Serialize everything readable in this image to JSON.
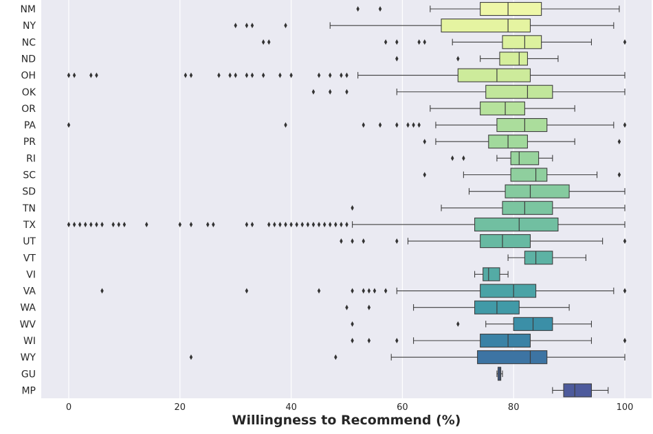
{
  "chart_data": {
    "type": "box",
    "orientation": "horizontal",
    "xlabel": "Willingness to Recommend (%)",
    "ylabel": "",
    "xlim": [
      -5,
      105
    ],
    "xticks": [
      0,
      20,
      40,
      60,
      80,
      100
    ],
    "grid": "vertical",
    "background": "#eaeaf2",
    "categories": [
      "NM",
      "NY",
      "NC",
      "ND",
      "OH",
      "OK",
      "OR",
      "PA",
      "PR",
      "RI",
      "SC",
      "SD",
      "TN",
      "TX",
      "UT",
      "VT",
      "VI",
      "VA",
      "WA",
      "WV",
      "WI",
      "WY",
      "GU",
      "MP"
    ],
    "boxes": [
      {
        "label": "NM",
        "whisker_low": 65,
        "q1": 74,
        "median": 79,
        "q3": 85,
        "whisker_high": 99,
        "fliers": [
          52,
          56
        ],
        "color": "#eef7a8"
      },
      {
        "label": "NY",
        "whisker_low": 47,
        "q1": 67,
        "median": 79,
        "q3": 83,
        "whisker_high": 98,
        "fliers": [
          30,
          32,
          33,
          39
        ],
        "color": "#e5f4a1"
      },
      {
        "label": "NC",
        "whisker_low": 69,
        "q1": 78,
        "median": 82,
        "q3": 85,
        "whisker_high": 94,
        "fliers": [
          35,
          36,
          57,
          59,
          63,
          64,
          100
        ],
        "color": "#dcf19e"
      },
      {
        "label": "ND",
        "whisker_low": 74,
        "q1": 77.5,
        "median": 81,
        "q3": 82.5,
        "whisker_high": 88,
        "fliers": [
          59,
          70
        ],
        "color": "#d5ee9c"
      },
      {
        "label": "OH",
        "whisker_low": 52,
        "q1": 70,
        "median": 77,
        "q3": 83,
        "whisker_high": 100,
        "fliers": [
          0,
          1,
          4,
          5,
          21,
          22,
          27,
          29,
          30,
          32,
          33,
          35,
          38,
          40,
          45,
          47,
          49,
          50
        ],
        "color": "#cdeb9b"
      },
      {
        "label": "OK",
        "whisker_low": 59,
        "q1": 75,
        "median": 82.5,
        "q3": 87,
        "whisker_high": 100,
        "fliers": [
          44,
          47,
          50
        ],
        "color": "#c1e69b"
      },
      {
        "label": "OR",
        "whisker_low": 65,
        "q1": 74,
        "median": 78.5,
        "q3": 82,
        "whisker_high": 91,
        "fliers": [],
        "color": "#b6e29c"
      },
      {
        "label": "PA",
        "whisker_low": 66,
        "q1": 77,
        "median": 82,
        "q3": 86,
        "whisker_high": 98,
        "fliers": [
          0,
          39,
          53,
          56,
          59,
          61,
          62,
          63,
          100
        ],
        "color": "#abdd9c"
      },
      {
        "label": "PR",
        "whisker_low": 66,
        "q1": 75.5,
        "median": 79,
        "q3": 82.5,
        "whisker_high": 91,
        "fliers": [
          64,
          99
        ],
        "color": "#a1d99c"
      },
      {
        "label": "RI",
        "whisker_low": 77,
        "q1": 79.5,
        "median": 81,
        "q3": 84.5,
        "whisker_high": 87,
        "fliers": [
          69,
          71
        ],
        "color": "#98d49d"
      },
      {
        "label": "SC",
        "whisker_low": 71,
        "q1": 79.5,
        "median": 84,
        "q3": 86,
        "whisker_high": 95,
        "fliers": [
          64,
          99
        ],
        "color": "#8fcf9e"
      },
      {
        "label": "SD",
        "whisker_low": 72,
        "q1": 78.5,
        "median": 83,
        "q3": 90,
        "whisker_high": 100,
        "fliers": [],
        "color": "#85ca9f"
      },
      {
        "label": "TN",
        "whisker_low": 67,
        "q1": 78,
        "median": 82,
        "q3": 87,
        "whisker_high": 100,
        "fliers": [
          51
        ],
        "color": "#7bc5a0"
      },
      {
        "label": "TX",
        "whisker_low": 51,
        "q1": 73,
        "median": 81,
        "q3": 88,
        "whisker_high": 100,
        "fliers": [
          0,
          1,
          2,
          3,
          4,
          5,
          6,
          8,
          9,
          10,
          14,
          20,
          22,
          25,
          26,
          32,
          33,
          36,
          37,
          38,
          39,
          40,
          41,
          42,
          43,
          44,
          45,
          46,
          47,
          48,
          49,
          50
        ],
        "color": "#71bfa1"
      },
      {
        "label": "UT",
        "whisker_low": 61,
        "q1": 74,
        "median": 78,
        "q3": 83,
        "whisker_high": 96,
        "fliers": [
          49,
          51,
          53,
          59,
          100
        ],
        "color": "#67b9a2"
      },
      {
        "label": "VT",
        "whisker_low": 79,
        "q1": 82,
        "median": 84,
        "q3": 87,
        "whisker_high": 93,
        "fliers": [],
        "color": "#5db2a4"
      },
      {
        "label": "VI",
        "whisker_low": 73,
        "q1": 74.5,
        "median": 75.5,
        "q3": 77.5,
        "whisker_high": 79,
        "fliers": [],
        "color": "#54aba5"
      },
      {
        "label": "VA",
        "whisker_low": 59,
        "q1": 74,
        "median": 80,
        "q3": 84,
        "whisker_high": 98,
        "fliers": [
          6,
          32,
          45,
          51,
          53,
          54,
          55,
          57,
          100
        ],
        "color": "#4aa3a6"
      },
      {
        "label": "WA",
        "whisker_low": 62,
        "q1": 73,
        "median": 77,
        "q3": 81,
        "whisker_high": 90,
        "fliers": [
          50,
          54
        ],
        "color": "#419aa7"
      },
      {
        "label": "WV",
        "whisker_low": 75,
        "q1": 80,
        "median": 83.5,
        "q3": 87,
        "whisker_high": 94,
        "fliers": [
          51,
          70
        ],
        "color": "#3b8fa7"
      },
      {
        "label": "WI",
        "whisker_low": 62,
        "q1": 74,
        "median": 79,
        "q3": 83,
        "whisker_high": 94,
        "fliers": [
          51,
          54,
          59,
          100
        ],
        "color": "#3a82a6"
      },
      {
        "label": "WY",
        "whisker_low": 58,
        "q1": 73.5,
        "median": 83,
        "q3": 86,
        "whisker_high": 100,
        "fliers": [
          22,
          48
        ],
        "color": "#3d74a3"
      },
      {
        "label": "GU",
        "whisker_low": 77,
        "q1": 77.2,
        "median": 77.5,
        "q3": 77.7,
        "whisker_high": 78,
        "fliers": [],
        "color": "#44669f"
      },
      {
        "label": "MP",
        "whisker_low": 87,
        "q1": 89,
        "median": 91,
        "q3": 94,
        "whisker_high": 97,
        "fliers": [],
        "color": "#4d5a9c"
      }
    ]
  }
}
